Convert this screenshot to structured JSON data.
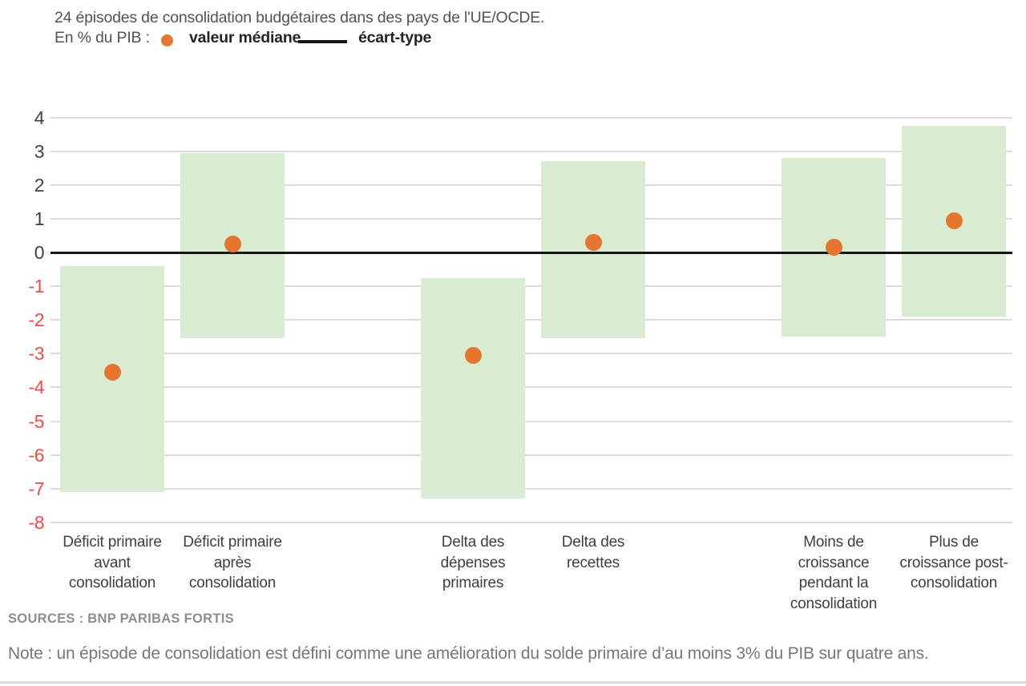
{
  "header": {
    "title": "24 épisodes de consolidation budgétaires dans des pays de l'UE/OCDE.",
    "unit_label": "En % du PIB :",
    "legend": [
      {
        "marker": "median-dot",
        "label": "valeur médiane"
      },
      {
        "marker": "range-line",
        "label": "écart-type"
      }
    ]
  },
  "chart_data": {
    "type": "bar",
    "subtype": "floating-range-bars-with-median-points",
    "unit": "% du PIB",
    "ylim": [
      -8,
      4
    ],
    "yticks": [
      4,
      3,
      2,
      1,
      0,
      -1,
      -2,
      -3,
      -4,
      -5,
      -6,
      -7,
      -8
    ],
    "grid": true,
    "zero_line": true,
    "legend_position": "top-left",
    "categories": [
      "Déficit primaire avant consolidation",
      "Déficit primaire après consolidation",
      "Delta des dépenses primaires",
      "Delta des recettes",
      "Moins de croissance pendant la consolidation",
      "Plus de croissance post-consolidation"
    ],
    "category_label_lines": [
      [
        "Déficit primaire",
        "avant",
        "consolidation"
      ],
      [
        "Déficit primaire",
        "après",
        "consolidation"
      ],
      [
        "Delta des",
        "dépenses",
        "primaires"
      ],
      [
        "Delta des",
        "recettes"
      ],
      [
        "Moins de",
        "croissance",
        "pendant la",
        "consolidation"
      ],
      [
        "Plus de",
        "croissance post-",
        "consolidation"
      ]
    ],
    "series": [
      {
        "name": "écart-type",
        "type": "range",
        "ranges": [
          {
            "high": -0.4,
            "low": -7.1
          },
          {
            "high": 2.95,
            "low": -2.55
          },
          {
            "high": -0.75,
            "low": -7.3
          },
          {
            "high": 2.7,
            "low": -2.55
          },
          {
            "high": 2.8,
            "low": -2.5
          },
          {
            "high": 3.75,
            "low": -1.9
          }
        ]
      },
      {
        "name": "valeur médiane",
        "type": "point",
        "values": [
          -3.55,
          0.25,
          -3.05,
          0.3,
          0.15,
          0.95
        ]
      }
    ]
  },
  "colors": {
    "range_bar": "#d9ecd1",
    "median_dot": "#e6752f",
    "positive_tick": "#3f4245",
    "negative_tick": "#f04a45",
    "gridline": "#dcdcdc",
    "zero_line": "#151515"
  },
  "footer": {
    "sources": "SOURCES : BNP PARIBAS FORTIS",
    "note": "Note : un épisode de consolidation est défini comme une amélioration du solde primaire d’au moins 3% du PIB sur quatre ans."
  }
}
